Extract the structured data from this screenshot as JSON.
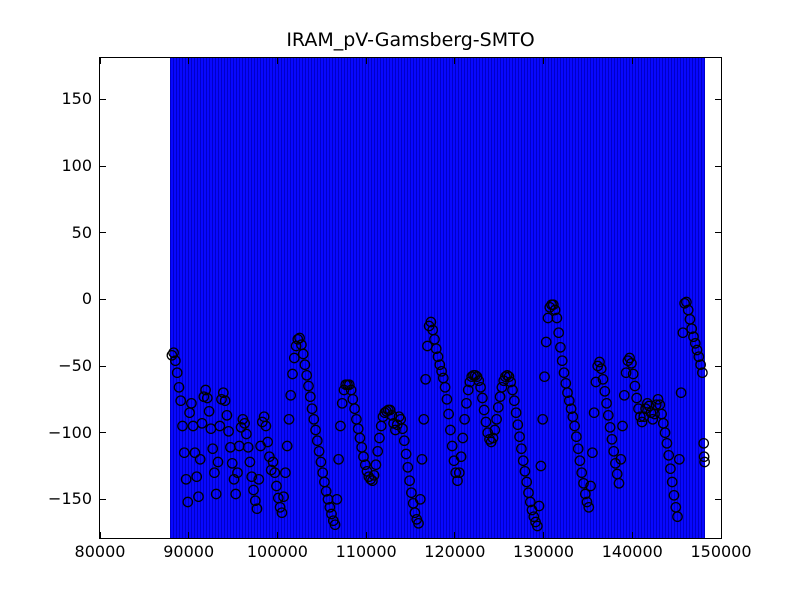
{
  "title": "IRAM_pV-Gamsberg-SMTO",
  "colors": {
    "band_fill": "#0808ff",
    "band_stripe": "#0000c8",
    "marker_edge": "#000000",
    "axis": "#000000",
    "background": "#ffffff"
  },
  "chart_data": {
    "type": "scatter",
    "title": "IRAM_pV-Gamsberg-SMTO",
    "xlabel": "",
    "ylabel": "",
    "xlim": [
      80000,
      150000
    ],
    "ylim": [
      -179,
      181
    ],
    "grid": false,
    "legend": "none",
    "xticks": [
      80000,
      90000,
      100000,
      110000,
      120000,
      130000,
      140000,
      150000
    ],
    "xtick_labels": [
      "80000",
      "90000",
      "100000",
      "110000",
      "120000",
      "130000",
      "140000",
      "150000"
    ],
    "yticks": [
      -150,
      -100,
      -50,
      0,
      50,
      100,
      150
    ],
    "ytick_labels": [
      "−150",
      "−100",
      "−50",
      "0",
      "50",
      "100",
      "150"
    ],
    "errorbar_band": {
      "x_start": 87900,
      "x_end": 148200,
      "note": "dense vertical blue error bars spanning the full y-range, clipped by the axes"
    },
    "points": [
      [
        88100,
        -42
      ],
      [
        88300,
        -40
      ],
      [
        88500,
        -46
      ],
      [
        88700,
        -55
      ],
      [
        88900,
        -66
      ],
      [
        89100,
        -76
      ],
      [
        89300,
        -95
      ],
      [
        89500,
        -115
      ],
      [
        89700,
        -135
      ],
      [
        89900,
        -152
      ],
      [
        90100,
        -85
      ],
      [
        90300,
        -78
      ],
      [
        90500,
        -95
      ],
      [
        90700,
        -115
      ],
      [
        90900,
        -133
      ],
      [
        91100,
        -148
      ],
      [
        91300,
        -120
      ],
      [
        91500,
        -93
      ],
      [
        91700,
        -73
      ],
      [
        91900,
        -68
      ],
      [
        92100,
        -74
      ],
      [
        92300,
        -84
      ],
      [
        92500,
        -97
      ],
      [
        92700,
        -112
      ],
      [
        92900,
        -130
      ],
      [
        93100,
        -146
      ],
      [
        93300,
        -122
      ],
      [
        93500,
        -95
      ],
      [
        93700,
        -75
      ],
      [
        93900,
        -70
      ],
      [
        94100,
        -76
      ],
      [
        94300,
        -87
      ],
      [
        94500,
        -99
      ],
      [
        94700,
        -111
      ],
      [
        94900,
        -123
      ],
      [
        95100,
        -135
      ],
      [
        95300,
        -146
      ],
      [
        95500,
        -130
      ],
      [
        95700,
        -110
      ],
      [
        95900,
        -96
      ],
      [
        96100,
        -90
      ],
      [
        96300,
        -93
      ],
      [
        96500,
        -101
      ],
      [
        96700,
        -111
      ],
      [
        96900,
        -122
      ],
      [
        97100,
        -133
      ],
      [
        97300,
        -143
      ],
      [
        97500,
        -151
      ],
      [
        97700,
        -157
      ],
      [
        97900,
        -135
      ],
      [
        98100,
        -110
      ],
      [
        98300,
        -92
      ],
      [
        98500,
        -88
      ],
      [
        98700,
        -95
      ],
      [
        98900,
        -107
      ],
      [
        99100,
        -118
      ],
      [
        99300,
        -128
      ],
      [
        99500,
        -122
      ],
      [
        99700,
        -130
      ],
      [
        99900,
        -140
      ],
      [
        100100,
        -149
      ],
      [
        100300,
        -156
      ],
      [
        100500,
        -160
      ],
      [
        100700,
        -148
      ],
      [
        100900,
        -130
      ],
      [
        101100,
        -110
      ],
      [
        101300,
        -90
      ],
      [
        101500,
        -72
      ],
      [
        101700,
        -56
      ],
      [
        101900,
        -44
      ],
      [
        102100,
        -35
      ],
      [
        102300,
        -30
      ],
      [
        102500,
        -29
      ],
      [
        102700,
        -34
      ],
      [
        102900,
        -41
      ],
      [
        103100,
        -49
      ],
      [
        103300,
        -57
      ],
      [
        103500,
        -65
      ],
      [
        103700,
        -73
      ],
      [
        103900,
        -82
      ],
      [
        104100,
        -90
      ],
      [
        104300,
        -98
      ],
      [
        104500,
        -106
      ],
      [
        104700,
        -114
      ],
      [
        104900,
        -122
      ],
      [
        105100,
        -130
      ],
      [
        105300,
        -137
      ],
      [
        105500,
        -144
      ],
      [
        105700,
        -150
      ],
      [
        105900,
        -156
      ],
      [
        106100,
        -161
      ],
      [
        106300,
        -166
      ],
      [
        106500,
        -169
      ],
      [
        106700,
        -150
      ],
      [
        106900,
        -120
      ],
      [
        107100,
        -95
      ],
      [
        107300,
        -78
      ],
      [
        107500,
        -68
      ],
      [
        107700,
        -64
      ],
      [
        107900,
        -64
      ],
      [
        108100,
        -64
      ],
      [
        108300,
        -68
      ],
      [
        108500,
        -75
      ],
      [
        108700,
        -82
      ],
      [
        108900,
        -90
      ],
      [
        109100,
        -97
      ],
      [
        109300,
        -104
      ],
      [
        109500,
        -111
      ],
      [
        109700,
        -118
      ],
      [
        109900,
        -124
      ],
      [
        110100,
        -129
      ],
      [
        110300,
        -133
      ],
      [
        110500,
        -135
      ],
      [
        110700,
        -136
      ],
      [
        110900,
        -132
      ],
      [
        111100,
        -124
      ],
      [
        111300,
        -114
      ],
      [
        111500,
        -104
      ],
      [
        111700,
        -95
      ],
      [
        111900,
        -88
      ],
      [
        112100,
        -85
      ],
      [
        112300,
        -84
      ],
      [
        112500,
        -83
      ],
      [
        112700,
        -83
      ],
      [
        112900,
        -87
      ],
      [
        113100,
        -93
      ],
      [
        113300,
        -98
      ],
      [
        113500,
        -94
      ],
      [
        113700,
        -88
      ],
      [
        113900,
        -90
      ],
      [
        114100,
        -97
      ],
      [
        114300,
        -106
      ],
      [
        114500,
        -116
      ],
      [
        114700,
        -126
      ],
      [
        114900,
        -136
      ],
      [
        115100,
        -145
      ],
      [
        115300,
        -153
      ],
      [
        115500,
        -160
      ],
      [
        115700,
        -165
      ],
      [
        115900,
        -168
      ],
      [
        116100,
        -150
      ],
      [
        116300,
        -120
      ],
      [
        116500,
        -90
      ],
      [
        116700,
        -60
      ],
      [
        116900,
        -35
      ],
      [
        117100,
        -20
      ],
      [
        117300,
        -17
      ],
      [
        117500,
        -23
      ],
      [
        117700,
        -30
      ],
      [
        117900,
        -37
      ],
      [
        118100,
        -43
      ],
      [
        118300,
        -49
      ],
      [
        118500,
        -54
      ],
      [
        118700,
        -59
      ],
      [
        118900,
        -66
      ],
      [
        119100,
        -75
      ],
      [
        119300,
        -86
      ],
      [
        119500,
        -98
      ],
      [
        119700,
        -110
      ],
      [
        119900,
        -121
      ],
      [
        120100,
        -130
      ],
      [
        120300,
        -136
      ],
      [
        120500,
        -130
      ],
      [
        120700,
        -118
      ],
      [
        120900,
        -104
      ],
      [
        121100,
        -90
      ],
      [
        121300,
        -78
      ],
      [
        121500,
        -68
      ],
      [
        121700,
        -62
      ],
      [
        121900,
        -58
      ],
      [
        122100,
        -57
      ],
      [
        122300,
        -57
      ],
      [
        122500,
        -58
      ],
      [
        122700,
        -61
      ],
      [
        122900,
        -66
      ],
      [
        123100,
        -74
      ],
      [
        123300,
        -83
      ],
      [
        123500,
        -92
      ],
      [
        123700,
        -100
      ],
      [
        123900,
        -105
      ],
      [
        124100,
        -107
      ],
      [
        124300,
        -104
      ],
      [
        124500,
        -98
      ],
      [
        124700,
        -90
      ],
      [
        124900,
        -81
      ],
      [
        125100,
        -73
      ],
      [
        125300,
        -66
      ],
      [
        125500,
        -61
      ],
      [
        125700,
        -58
      ],
      [
        125900,
        -57
      ],
      [
        126100,
        -58
      ],
      [
        126300,
        -62
      ],
      [
        126500,
        -68
      ],
      [
        126700,
        -76
      ],
      [
        126900,
        -85
      ],
      [
        127100,
        -94
      ],
      [
        127300,
        -103
      ],
      [
        127500,
        -112
      ],
      [
        127700,
        -121
      ],
      [
        127900,
        -129
      ],
      [
        128100,
        -137
      ],
      [
        128300,
        -145
      ],
      [
        128500,
        -152
      ],
      [
        128700,
        -158
      ],
      [
        128900,
        -163
      ],
      [
        129100,
        -167
      ],
      [
        129300,
        -170
      ],
      [
        129500,
        -155
      ],
      [
        129700,
        -125
      ],
      [
        129900,
        -90
      ],
      [
        130100,
        -58
      ],
      [
        130300,
        -32
      ],
      [
        130500,
        -14
      ],
      [
        130700,
        -6
      ],
      [
        130900,
        -4
      ],
      [
        131100,
        -4
      ],
      [
        131300,
        -8
      ],
      [
        131500,
        -14
      ],
      [
        131700,
        -25
      ],
      [
        131900,
        -36
      ],
      [
        132100,
        -46
      ],
      [
        132300,
        -55
      ],
      [
        132500,
        -63
      ],
      [
        132700,
        -70
      ],
      [
        132900,
        -76
      ],
      [
        133100,
        -82
      ],
      [
        133300,
        -88
      ],
      [
        133500,
        -95
      ],
      [
        133700,
        -103
      ],
      [
        133900,
        -112
      ],
      [
        134100,
        -121
      ],
      [
        134300,
        -130
      ],
      [
        134500,
        -138
      ],
      [
        134700,
        -146
      ],
      [
        134900,
        -152
      ],
      [
        135100,
        -156
      ],
      [
        135300,
        -140
      ],
      [
        135500,
        -115
      ],
      [
        135700,
        -85
      ],
      [
        135900,
        -62
      ],
      [
        136100,
        -50
      ],
      [
        136300,
        -47
      ],
      [
        136500,
        -52
      ],
      [
        136700,
        -60
      ],
      [
        136900,
        -69
      ],
      [
        137100,
        -78
      ],
      [
        137300,
        -87
      ],
      [
        137500,
        -96
      ],
      [
        137700,
        -105
      ],
      [
        137900,
        -114
      ],
      [
        138100,
        -123
      ],
      [
        138300,
        -131
      ],
      [
        138500,
        -138
      ],
      [
        138700,
        -120
      ],
      [
        138900,
        -95
      ],
      [
        139100,
        -72
      ],
      [
        139300,
        -55
      ],
      [
        139500,
        -46
      ],
      [
        139700,
        -44
      ],
      [
        139900,
        -48
      ],
      [
        140100,
        -56
      ],
      [
        140300,
        -65
      ],
      [
        140500,
        -74
      ],
      [
        140700,
        -82
      ],
      [
        140900,
        -88
      ],
      [
        141100,
        -92
      ],
      [
        141300,
        -88
      ],
      [
        141500,
        -82
      ],
      [
        141700,
        -78
      ],
      [
        141900,
        -80
      ],
      [
        142100,
        -85
      ],
      [
        142300,
        -90
      ],
      [
        142500,
        -86
      ],
      [
        142700,
        -79
      ],
      [
        142900,
        -75
      ],
      [
        143100,
        -79
      ],
      [
        143300,
        -86
      ],
      [
        143500,
        -93
      ],
      [
        143700,
        -100
      ],
      [
        143900,
        -108
      ],
      [
        144100,
        -117
      ],
      [
        144300,
        -127
      ],
      [
        144500,
        -137
      ],
      [
        144700,
        -147
      ],
      [
        144900,
        -156
      ],
      [
        145100,
        -163
      ],
      [
        145300,
        -120
      ],
      [
        145500,
        -70
      ],
      [
        145700,
        -25
      ],
      [
        145900,
        -3
      ],
      [
        146100,
        -2
      ],
      [
        146300,
        -8
      ],
      [
        146500,
        -15
      ],
      [
        146700,
        -22
      ],
      [
        146900,
        -28
      ],
      [
        147100,
        -33
      ],
      [
        147300,
        -38
      ],
      [
        147500,
        -43
      ],
      [
        147700,
        -49
      ],
      [
        147900,
        -55
      ],
      [
        148050,
        -108
      ],
      [
        148100,
        -118
      ],
      [
        148150,
        -122
      ]
    ]
  }
}
